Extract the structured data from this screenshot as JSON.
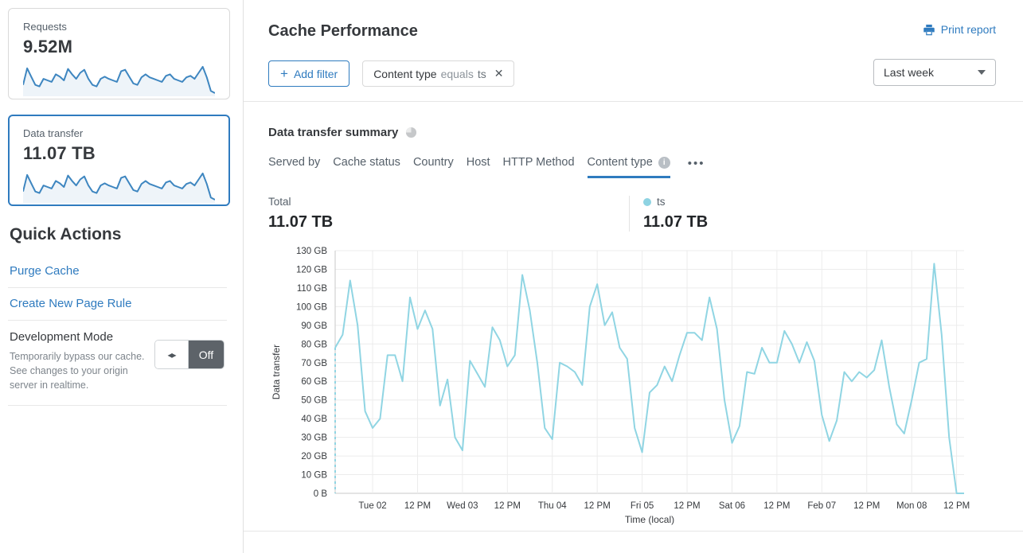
{
  "colors": {
    "accent": "#2f7bbf",
    "chart_line": "#90d5e3",
    "spark_stroke": "#3e86c0",
    "spark_fill": "rgba(62,134,192,0.09)",
    "grid": "#ececec",
    "axis": "#c9c9c9"
  },
  "sidebar": {
    "cards": [
      {
        "label": "Requests",
        "value": "9.52M",
        "selected": false,
        "sparkline": [
          35,
          90,
          62,
          35,
          30,
          55,
          50,
          45,
          70,
          62,
          50,
          88,
          70,
          55,
          75,
          85,
          55,
          35,
          30,
          55,
          62,
          55,
          50,
          45,
          80,
          85,
          62,
          40,
          35,
          60,
          70,
          60,
          55,
          50,
          45,
          65,
          70,
          55,
          50,
          45,
          60,
          65,
          55,
          75,
          95,
          60,
          15,
          8
        ]
      },
      {
        "label": "Data transfer",
        "value": "11.07 TB",
        "selected": true,
        "sparkline": [
          35,
          90,
          62,
          35,
          30,
          55,
          50,
          45,
          70,
          62,
          50,
          88,
          70,
          55,
          75,
          85,
          55,
          35,
          30,
          55,
          62,
          55,
          50,
          45,
          80,
          85,
          62,
          40,
          35,
          60,
          70,
          60,
          55,
          50,
          45,
          65,
          70,
          55,
          50,
          45,
          60,
          65,
          55,
          75,
          95,
          60,
          15,
          8
        ]
      }
    ],
    "quick_actions": {
      "title": "Quick Actions",
      "links": [
        "Purge Cache",
        "Create New Page Rule"
      ],
      "dev_mode": {
        "label": "Development Mode",
        "description": "Temporarily bypass our cache. See changes to your origin server in realtime.",
        "toggle_state": "Off"
      }
    }
  },
  "header": {
    "title": "Cache Performance",
    "print_label": "Print report"
  },
  "filters": {
    "add_filter_label": "Add filter",
    "chip": {
      "field": "Content type",
      "operator": "equals",
      "value": "ts"
    }
  },
  "time_range": {
    "selected": "Last week"
  },
  "summary": {
    "title": "Data transfer summary",
    "tabs": [
      {
        "label": "Served by",
        "selected": false
      },
      {
        "label": "Cache status",
        "selected": false
      },
      {
        "label": "Country",
        "selected": false
      },
      {
        "label": "Host",
        "selected": false
      },
      {
        "label": "HTTP Method",
        "selected": false
      },
      {
        "label": "Content type",
        "selected": true
      }
    ],
    "more_label": "•••",
    "total_label": "Total",
    "total_value": "11.07 TB",
    "series_label": "ts",
    "series_value": "11.07 TB"
  },
  "chart_data": {
    "type": "line",
    "title": "Data transfer over time",
    "xlabel": "Time (local)",
    "ylabel": "Data transfer",
    "unit": "GB",
    "ylim": [
      0,
      130
    ],
    "y_tick_labels": [
      "0 B",
      "10 GB",
      "20 GB",
      "30 GB",
      "40 GB",
      "50 GB",
      "60 GB",
      "70 GB",
      "80 GB",
      "90 GB",
      "100 GB",
      "110 GB",
      "120 GB",
      "130 GB"
    ],
    "x_tick_labels": [
      "Tue 02",
      "12 PM",
      "Wed 03",
      "12 PM",
      "Thu 04",
      "12 PM",
      "Fri 05",
      "12 PM",
      "Sat 06",
      "12 PM",
      "Feb 07",
      "12 PM",
      "Mon 08",
      "12 PM"
    ],
    "x_first_tick_hour": 10,
    "x_tick_step_hours": 12,
    "total_hours": 168,
    "sample_interval_hours": 2,
    "series_name": "ts",
    "values": [
      78,
      85,
      114,
      90,
      44,
      35,
      40,
      74,
      74,
      60,
      105,
      88,
      98,
      88,
      47,
      61,
      30,
      23,
      71,
      64,
      57,
      89,
      82,
      68,
      74,
      117,
      98,
      70,
      35,
      29,
      70,
      68,
      65,
      58,
      100,
      112,
      90,
      97,
      78,
      72,
      35,
      22,
      54,
      58,
      68,
      60,
      74,
      86,
      86,
      82,
      105,
      88,
      50,
      27,
      36,
      65,
      64,
      78,
      70,
      70,
      87,
      80,
      70,
      81,
      71,
      42,
      28,
      39,
      65,
      60,
      65,
      62,
      66,
      82,
      57,
      37,
      32,
      50,
      70,
      72,
      123,
      85,
      30,
      0,
      0
    ],
    "legend": [
      {
        "name": "ts",
        "color": "#8ed3e2"
      }
    ],
    "grid": true,
    "start_dashed_segment": true
  }
}
